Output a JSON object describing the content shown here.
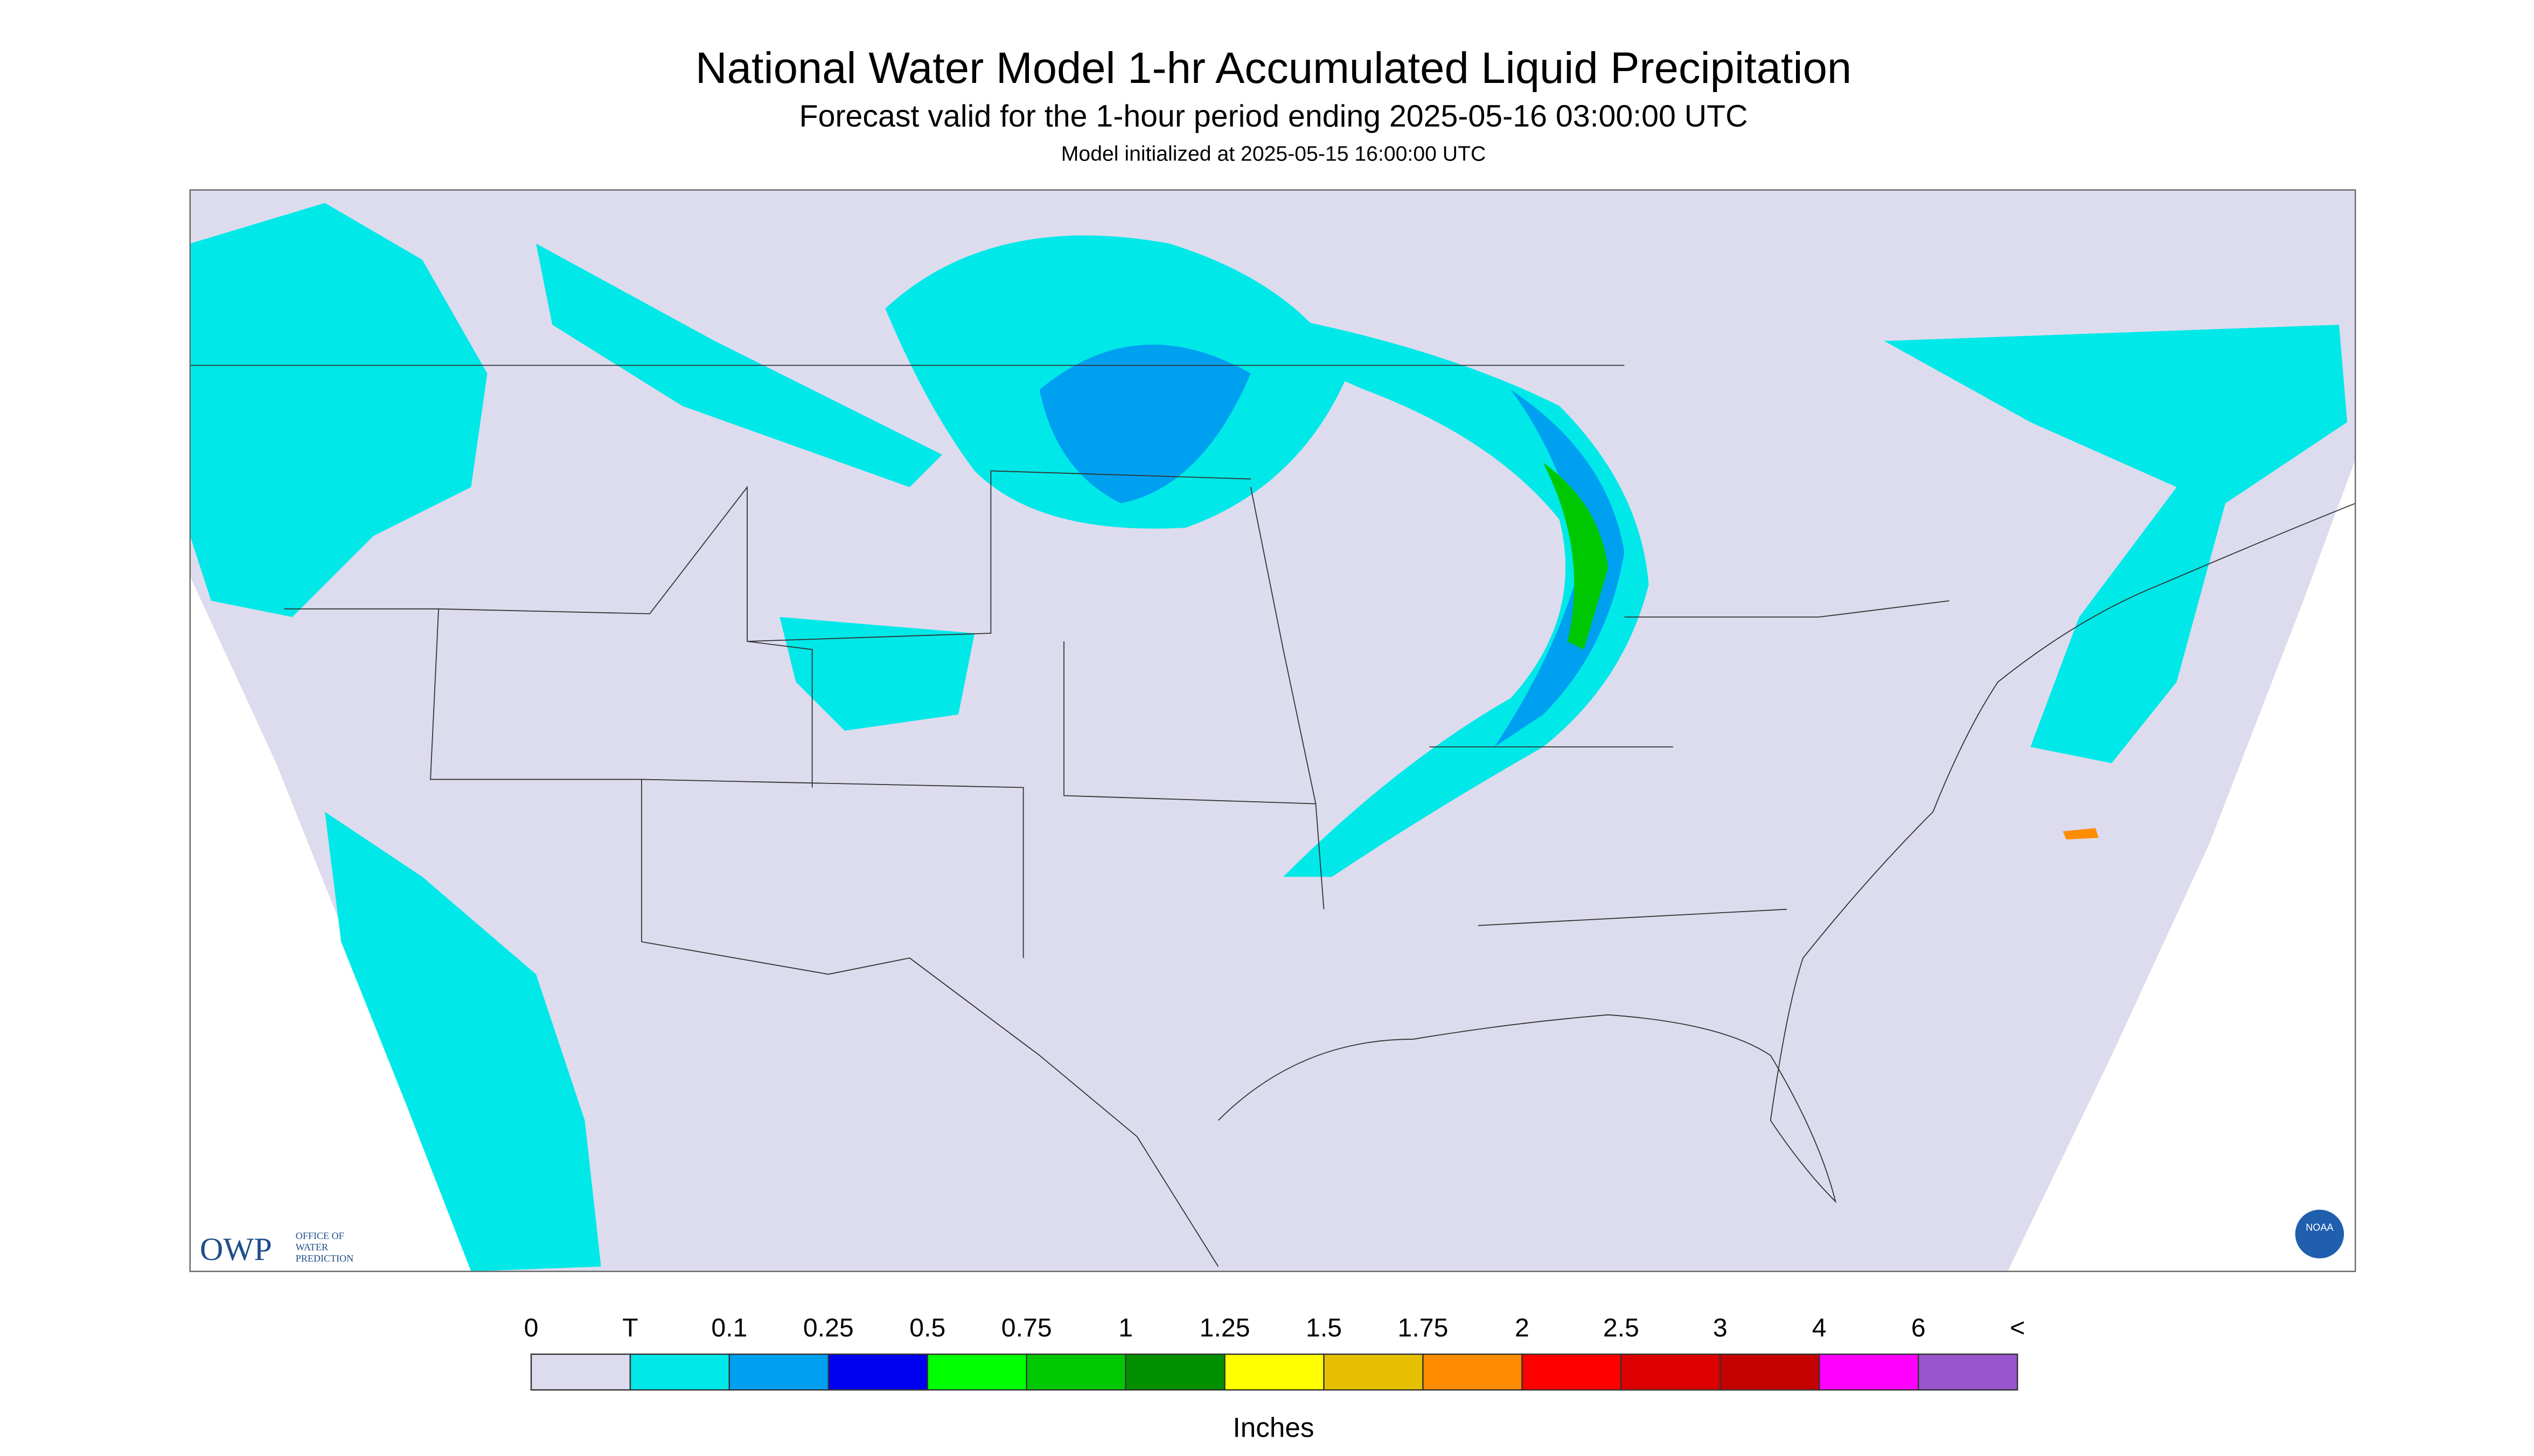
{
  "header": {
    "title": "National Water Model 1-hr Accumulated Liquid Precipitation",
    "subtitle": "Forecast valid for the 1-hour period ending 2025-05-16 03:00:00 UTC",
    "note": "Model initialized at 2025-05-15 16:00:00 UTC"
  },
  "logos": {
    "owp": "OWP",
    "owp_text": [
      "OFFICE OF",
      "WATER",
      "PREDICTION"
    ],
    "noaa": "NOAA"
  },
  "legend": {
    "labels": [
      "0",
      "T",
      "0.1",
      "0.25",
      "0.5",
      "0.75",
      "1",
      "1.25",
      "1.5",
      "1.75",
      "2",
      "2.5",
      "3",
      "4",
      "6",
      "<"
    ],
    "colors": [
      "#dcdcee",
      "#00e8e8",
      "#00a0f0",
      "#0000f0",
      "#00ff00",
      "#00c800",
      "#009000",
      "#ffff00",
      "#e6c000",
      "#ff8c00",
      "#ff0000",
      "#dc0000",
      "#c40000",
      "#ff00ff",
      "#9955cc"
    ],
    "unit": "Inches"
  }
}
